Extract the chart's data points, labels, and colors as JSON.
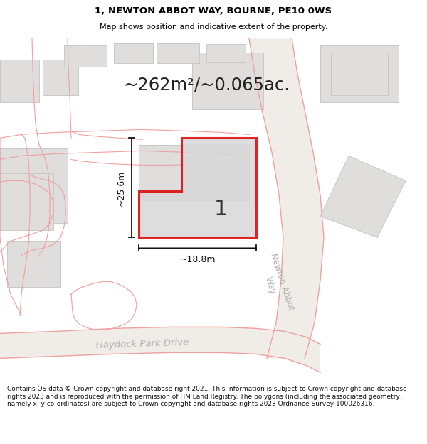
{
  "title_line1": "1, NEWTON ABBOT WAY, BOURNE, PE10 0WS",
  "title_line2": "Map shows position and indicative extent of the property.",
  "area_text": "~262m²/~0.065ac.",
  "plot_number": "1",
  "dim_width": "~18.8m",
  "dim_height": "~25.6m",
  "footer_text": "Contains OS data © Crown copyright and database right 2021. This information is subject to Crown copyright and database rights 2023 and is reproduced with the permission of HM Land Registry. The polygons (including the associated geometry, namely x, y co-ordinates) are subject to Crown copyright and database rights 2023 Ordnance Survey 100026316.",
  "map_bg": "#ffffff",
  "road_fill": "#f0ede8",
  "road_line": "#f0a0a0",
  "building_fill": "#e0dedd",
  "building_outline": "#c8c8c8",
  "plot_fill": "#d8d8d8",
  "plot_outline": "#dd0000",
  "dim_line_color": "#111111",
  "street_label_color": "#aaaaaa",
  "area_text_color": "#222222"
}
